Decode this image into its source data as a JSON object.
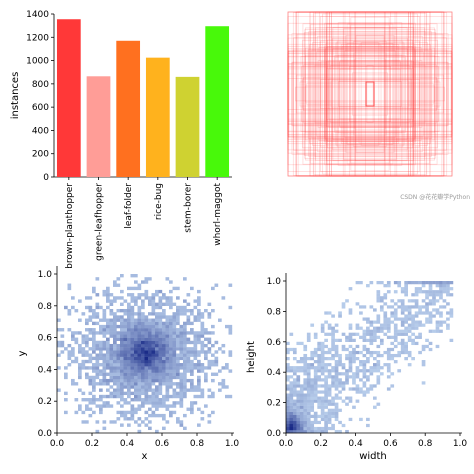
{
  "watermark": "CSDN @花花瓣学Python",
  "chart_data": [
    {
      "type": "bar",
      "categories": [
        "brown-planthopper",
        "green-leafhopper",
        "leaf-folder",
        "rice-bug",
        "stem-borer",
        "whorl-maggot"
      ],
      "values": [
        1355,
        865,
        1170,
        1025,
        860,
        1295
      ],
      "colors": [
        "#ff3838",
        "#ff9d97",
        "#ff701f",
        "#ffb21d",
        "#cfd231",
        "#48f90a"
      ],
      "xlabel": "",
      "ylabel": "instances",
      "ylim": [
        0,
        1400
      ],
      "yticks": [
        0,
        200,
        400,
        600,
        800,
        1000,
        1200,
        1400
      ],
      "grid": false
    },
    {
      "type": "other",
      "description_visible": "overlaid label bounding boxes centered on image",
      "box_color": "#ff3838",
      "axes": false
    },
    {
      "type": "heatmap",
      "xlabel": "x",
      "ylabel": "y",
      "xlim": [
        0,
        1
      ],
      "ylim": [
        0,
        1
      ],
      "xticks": [
        0.0,
        0.2,
        0.4,
        0.6,
        0.8,
        1.0
      ],
      "yticks": [
        0.0,
        0.2,
        0.4,
        0.6,
        0.8,
        1.0
      ],
      "peak": [
        0.5,
        0.5
      ],
      "color": "#1f5fae"
    },
    {
      "type": "heatmap",
      "xlabel": "width",
      "ylabel": "height",
      "xlim": [
        0,
        1
      ],
      "ylim": [
        0,
        1
      ],
      "xticks": [
        0.0,
        0.2,
        0.4,
        0.6,
        0.8,
        1.0
      ],
      "yticks": [
        0.0,
        0.2,
        0.4,
        0.6,
        0.8,
        1.0
      ],
      "peak": [
        0.05,
        0.08
      ],
      "color": "#1f5fae"
    }
  ]
}
